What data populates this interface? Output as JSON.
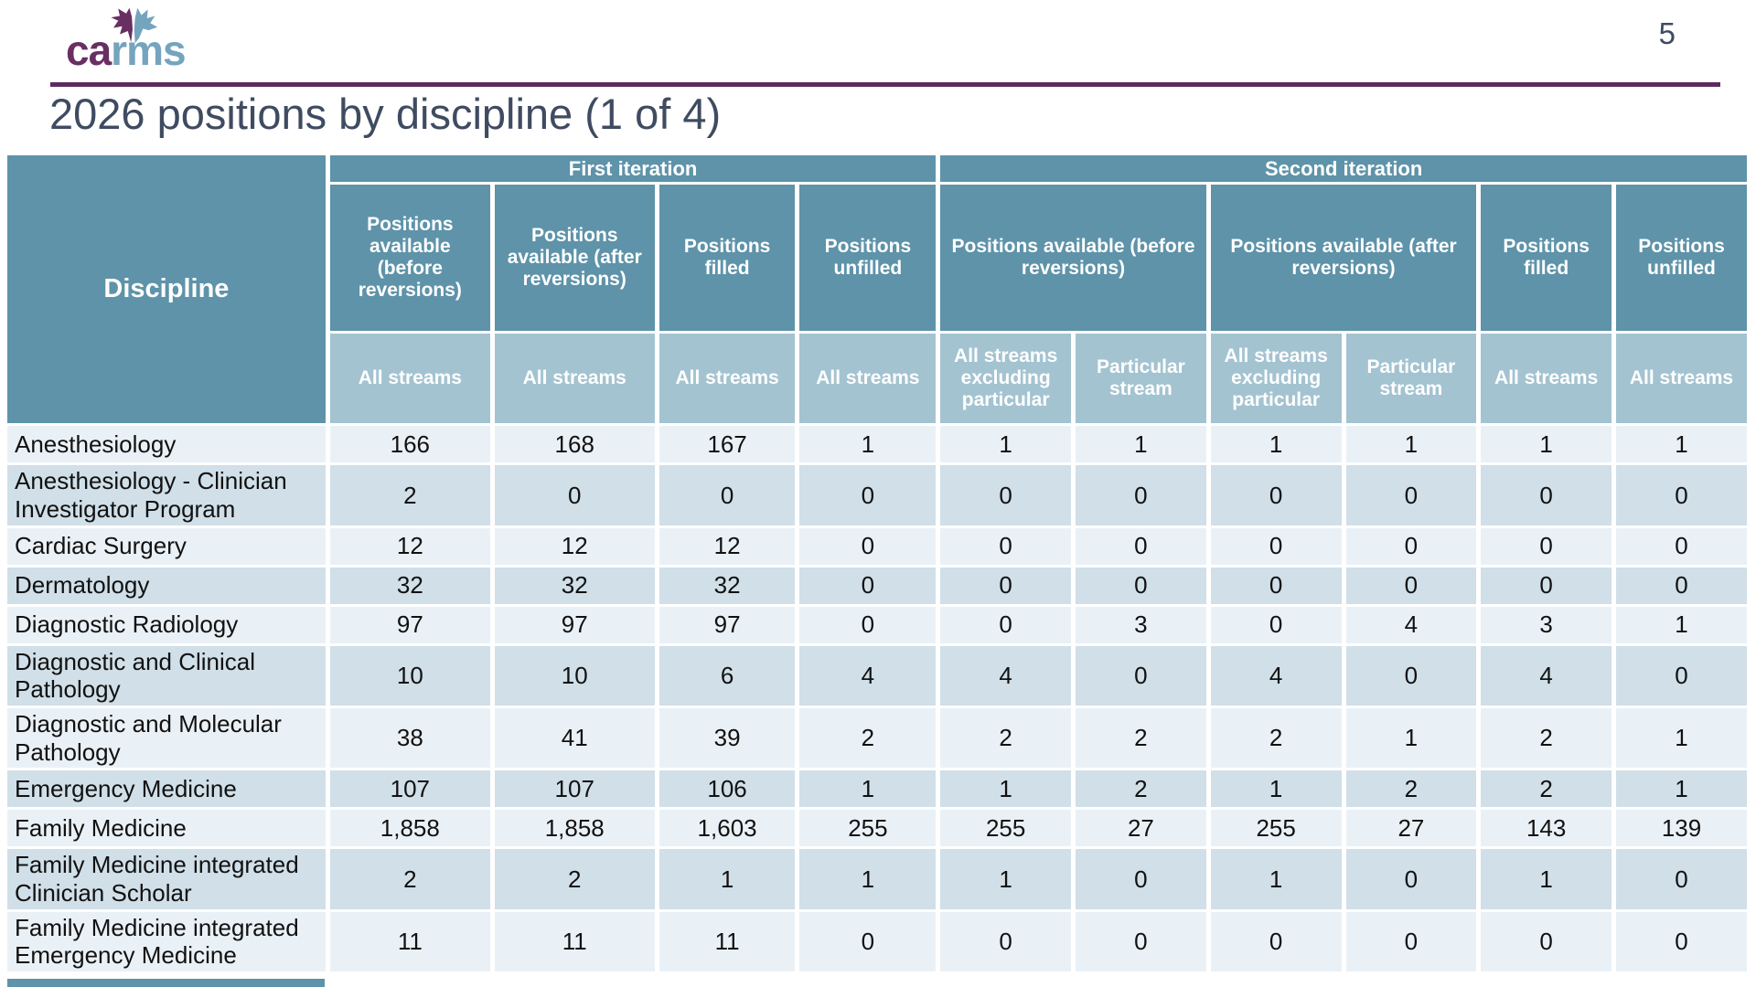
{
  "page_number": "5",
  "logo": {
    "ca": "ca",
    "rms": "rms"
  },
  "title": "2026 positions by discipline (1 of 4)",
  "colors": {
    "header_teal": "#5E93A9",
    "stream_blue": "#A3C3D1",
    "row_light": "#EAF1F6",
    "row_dark": "#D0DFE8",
    "accent_purple": "#5C2A5E",
    "title_color": "#3F4B61",
    "logo_purple": "#692F63",
    "logo_blue": "#74A4BE"
  },
  "table": {
    "discipline_header": "Discipline",
    "iteration_groups": [
      {
        "label": "First iteration",
        "colspan": 4
      },
      {
        "label": "Second iteration",
        "colspan": 6
      }
    ],
    "measure_headers": [
      {
        "label": "Positions available (before reversions)",
        "colspan": 1
      },
      {
        "label": "Positions available (after reversions)",
        "colspan": 1
      },
      {
        "label": "Positions filled",
        "colspan": 1
      },
      {
        "label": "Positions unfilled",
        "colspan": 1
      },
      {
        "label": "Positions available (before reversions)",
        "colspan": 2
      },
      {
        "label": "Positions available (after reversions)",
        "colspan": 2
      },
      {
        "label": "Positions filled",
        "colspan": 1
      },
      {
        "label": "Positions unfilled",
        "colspan": 1
      }
    ],
    "stream_headers": [
      "All streams",
      "All streams",
      "All streams",
      "All streams",
      "All streams excluding particular",
      "Particular stream",
      "All streams excluding particular",
      "Particular stream",
      "All streams",
      "All streams"
    ],
    "rows": [
      {
        "discipline": "Anesthesiology",
        "values": [
          "166",
          "168",
          "167",
          "1",
          "1",
          "1",
          "1",
          "1",
          "1",
          "1"
        ]
      },
      {
        "discipline": "Anesthesiology - Clinician Investigator Program",
        "values": [
          "2",
          "0",
          "0",
          "0",
          "0",
          "0",
          "0",
          "0",
          "0",
          "0"
        ]
      },
      {
        "discipline": "Cardiac Surgery",
        "values": [
          "12",
          "12",
          "12",
          "0",
          "0",
          "0",
          "0",
          "0",
          "0",
          "0"
        ]
      },
      {
        "discipline": "Dermatology",
        "values": [
          "32",
          "32",
          "32",
          "0",
          "0",
          "0",
          "0",
          "0",
          "0",
          "0"
        ]
      },
      {
        "discipline": "Diagnostic Radiology",
        "values": [
          "97",
          "97",
          "97",
          "0",
          "0",
          "3",
          "0",
          "4",
          "3",
          "1"
        ]
      },
      {
        "discipline": "Diagnostic and Clinical Pathology",
        "values": [
          "10",
          "10",
          "6",
          "4",
          "4",
          "0",
          "4",
          "0",
          "4",
          "0"
        ]
      },
      {
        "discipline": "Diagnostic and Molecular Pathology",
        "values": [
          "38",
          "41",
          "39",
          "2",
          "2",
          "2",
          "2",
          "1",
          "2",
          "1"
        ]
      },
      {
        "discipline": "Emergency Medicine",
        "values": [
          "107",
          "107",
          "106",
          "1",
          "1",
          "2",
          "1",
          "2",
          "2",
          "1"
        ]
      },
      {
        "discipline": "Family Medicine",
        "values": [
          "1,858",
          "1,858",
          "1,603",
          "255",
          "255",
          "27",
          "255",
          "27",
          "143",
          "139"
        ]
      },
      {
        "discipline": "Family Medicine integrated Clinician Scholar",
        "values": [
          "2",
          "2",
          "1",
          "1",
          "1",
          "0",
          "1",
          "0",
          "1",
          "0"
        ]
      },
      {
        "discipline": "Family Medicine integrated Emergency Medicine",
        "values": [
          "11",
          "11",
          "11",
          "0",
          "0",
          "0",
          "0",
          "0",
          "0",
          "0"
        ]
      }
    ]
  }
}
